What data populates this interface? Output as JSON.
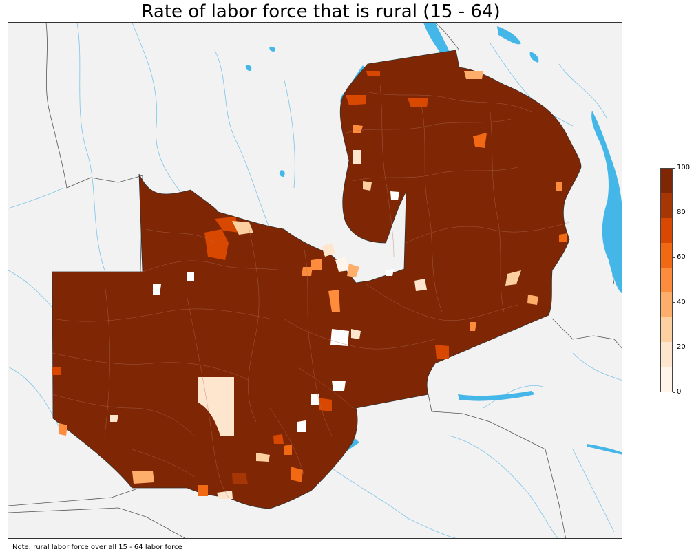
{
  "title": "Rate of labor force that is rural (15 - 64)",
  "note": "Note: rural labor force over all 15 - 64 labor force",
  "colorbar": {
    "min": 0,
    "max": 100,
    "tick_labels": [
      "0",
      "20",
      "40",
      "60",
      "80",
      "100"
    ],
    "colors": [
      "#fff5eb",
      "#fee6ce",
      "#fdd0a2",
      "#fdae6b",
      "#fd8d3c",
      "#f16913",
      "#d94801",
      "#a63603",
      "#7f2704"
    ]
  },
  "map": {
    "background_color": "#f2f2f2",
    "water_color": "#45b6e8",
    "dominant_value_color": "#7f2704"
  }
}
